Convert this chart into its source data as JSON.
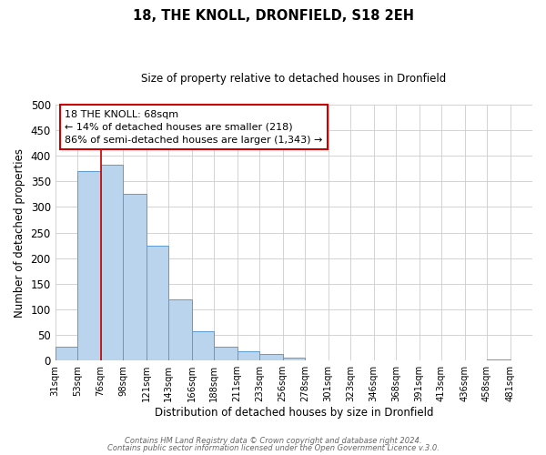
{
  "title": "18, THE KNOLL, DRONFIELD, S18 2EH",
  "subtitle": "Size of property relative to detached houses in Dronfield",
  "xlabel": "Distribution of detached houses by size in Dronfield",
  "ylabel": "Number of detached properties",
  "bar_values": [
    27,
    370,
    383,
    325,
    225,
    120,
    58,
    27,
    18,
    13,
    5,
    0,
    0,
    0,
    0,
    0,
    0,
    0,
    0,
    3,
    0
  ],
  "bin_labels": [
    "31sqm",
    "53sqm",
    "76sqm",
    "98sqm",
    "121sqm",
    "143sqm",
    "166sqm",
    "188sqm",
    "211sqm",
    "233sqm",
    "256sqm",
    "278sqm",
    "301sqm",
    "323sqm",
    "346sqm",
    "368sqm",
    "391sqm",
    "413sqm",
    "436sqm",
    "458sqm",
    "481sqm"
  ],
  "bar_color": "#bad4ed",
  "bar_edge_color": "#5b9bd5",
  "vline_x_index": 2,
  "vline_color": "#cc0000",
  "ylim": [
    0,
    500
  ],
  "yticks": [
    0,
    50,
    100,
    150,
    200,
    250,
    300,
    350,
    400,
    450,
    500
  ],
  "annotation_text": "18 THE KNOLL: 68sqm\n← 14% of detached houses are smaller (218)\n86% of semi-detached houses are larger (1,343) →",
  "annotation_box_color": "#ffffff",
  "annotation_border_color": "#cc0000",
  "bin_edges": [
    31,
    53,
    76,
    98,
    121,
    143,
    166,
    188,
    211,
    233,
    256,
    278,
    301,
    323,
    346,
    368,
    391,
    413,
    436,
    458,
    481,
    503
  ],
  "footer_line1": "Contains HM Land Registry data © Crown copyright and database right 2024.",
  "footer_line2": "Contains public sector information licensed under the Open Government Licence v.3.0.",
  "bg_color": "#ffffff"
}
